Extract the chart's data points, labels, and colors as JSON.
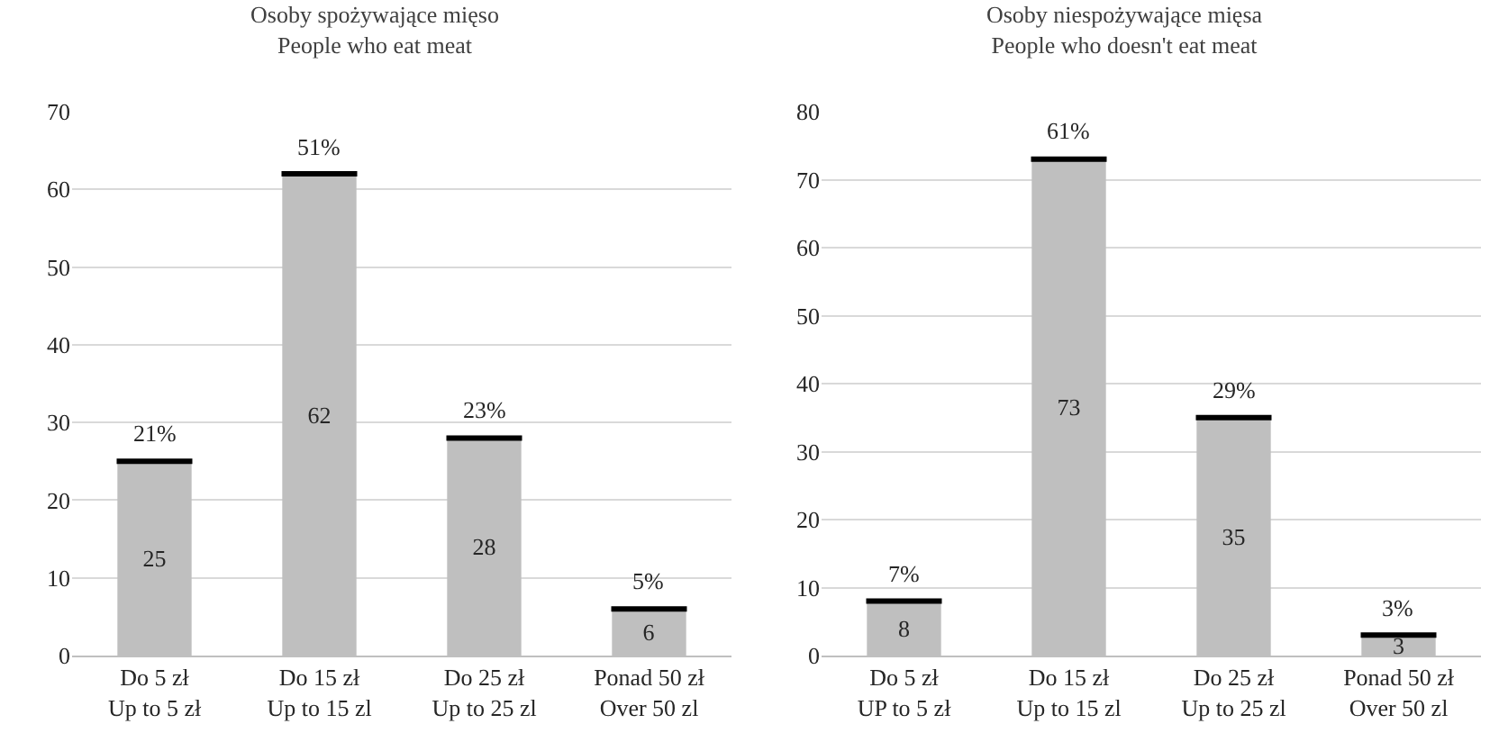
{
  "chart_data": [
    {
      "type": "bar",
      "title": "Osoby spożywające mięso\nPeople who eat meat",
      "categories": [
        "Do 5 zł\nUp to 5 zł",
        "Do 15 zł\nUp to 15 zl",
        "Do 25 zł\nUp to 25 zl",
        "Ponad 50 zł\nOver 50 zl"
      ],
      "series": [
        {
          "color": "#bfbfbf",
          "values": [
            25,
            62,
            28,
            6
          ],
          "errors": [
            0,
            0,
            0,
            0
          ]
        }
      ],
      "data_labels": true,
      "annotations": [
        {
          "text": "21%",
          "x": "Do 5 zł\nUp to 5 zł",
          "y": 25
        },
        {
          "text": "51%",
          "x": "Do 15 zł\nUp to 15 zl",
          "y": 62
        },
        {
          "text": "23%",
          "x": "Do 25 zł\nUp to 25 zl",
          "y": 28
        },
        {
          "text": "5%",
          "x": "Ponad 50 zł\nOver 50 zl",
          "y": 6
        }
      ],
      "ylim": [
        0,
        70
      ],
      "yticks": [
        0,
        10,
        20,
        30,
        40,
        50,
        60,
        70
      ],
      "grid": "y"
    },
    {
      "type": "bar",
      "title": "Osoby niespożywające mięsa\nPeople who doesn't eat meat",
      "categories": [
        "Do 5 zł\nUP to 5 zł",
        "Do 15 zł\nUp to 15 zl",
        "Do 25 zł\nUp to 25 zl",
        "Ponad 50 zł\nOver 50 zl"
      ],
      "series": [
        {
          "color": "#bfbfbf",
          "values": [
            8,
            73,
            35,
            3
          ],
          "errors": [
            0,
            0,
            0,
            0
          ]
        }
      ],
      "data_labels": true,
      "annotations": [
        {
          "text": "7%",
          "x": "Do 5 zł\nUP to 5 zł",
          "y": 8
        },
        {
          "text": "61%",
          "x": "Do 15 zł\nUp to 15 zl",
          "y": 73
        },
        {
          "text": "29%",
          "x": "Do 25 zł\nUp to 25 zl",
          "y": 35
        },
        {
          "text": "3%",
          "x": "Ponad 50 zł\nOver 50 zl",
          "y": 3
        }
      ],
      "ylim": [
        0,
        80
      ],
      "yticks": [
        0,
        10,
        20,
        30,
        40,
        50,
        60,
        70,
        80
      ],
      "grid": "y"
    }
  ]
}
